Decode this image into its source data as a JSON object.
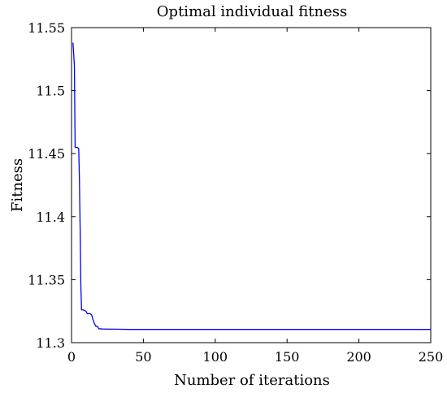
{
  "chart_data": {
    "type": "line",
    "title": "Optimal individual fitness",
    "xlabel": "Number of iterations",
    "ylabel": "Fitness",
    "xlim": [
      0,
      250
    ],
    "ylim": [
      11.3,
      11.55
    ],
    "xticks": [
      0,
      50,
      100,
      150,
      200,
      250
    ],
    "yticks": [
      11.3,
      11.35,
      11.4,
      11.45,
      11.5,
      11.55
    ],
    "xtick_labels": [
      "0",
      "50",
      "100",
      "150",
      "200",
      "250"
    ],
    "ytick_labels": [
      "11.3",
      "11.35",
      "11.4",
      "11.45",
      "11.5",
      "11.55"
    ],
    "grid": false,
    "legend": "none",
    "series": [
      {
        "color": "#0000ff",
        "x": [
          1,
          2,
          2.5,
          3,
          4,
          5,
          5.5,
          6,
          6.5,
          7,
          8,
          10,
          11,
          13,
          14,
          15,
          16,
          17,
          18,
          19,
          20,
          22,
          30,
          40,
          50,
          100,
          150,
          200,
          250
        ],
        "y": [
          11.538,
          11.52,
          11.455,
          11.455,
          11.455,
          11.454,
          11.43,
          11.39,
          11.345,
          11.326,
          11.326,
          11.325,
          11.323,
          11.323,
          11.322,
          11.318,
          11.315,
          11.313,
          11.313,
          11.311,
          11.311,
          11.3108,
          11.3107,
          11.3105,
          11.3105,
          11.3105,
          11.3105,
          11.3105,
          11.3105
        ]
      }
    ]
  }
}
